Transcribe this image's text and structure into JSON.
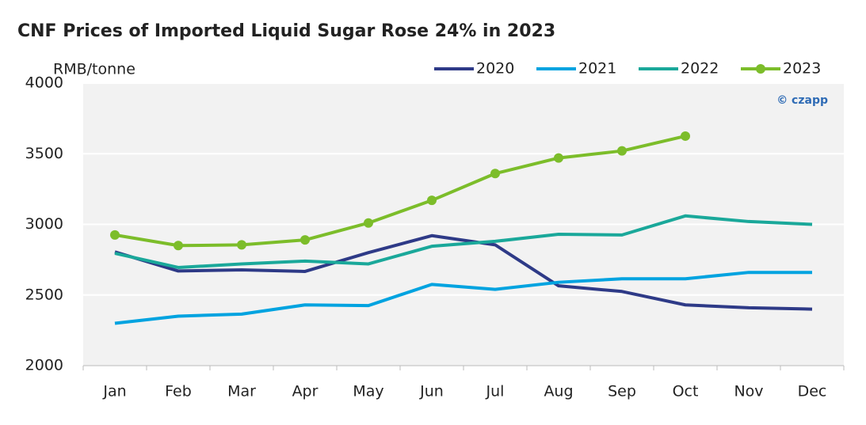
{
  "chart_data": {
    "type": "line",
    "title": "CNF Prices of Imported Liquid Sugar Rose 24% in 2023",
    "y_label": "RMB/tonne",
    "watermark": "© czapp",
    "categories": [
      "Jan",
      "Feb",
      "Mar",
      "Apr",
      "May",
      "Jun",
      "Jul",
      "Aug",
      "Sep",
      "Oct",
      "Nov",
      "Dec"
    ],
    "series": [
      {
        "name": "2020",
        "color": "#2e3a87",
        "markers": false,
        "values": [
          2805,
          2670,
          2678,
          2667,
          2800,
          2920,
          2855,
          2565,
          2525,
          2430,
          2410,
          2400
        ]
      },
      {
        "name": "2021",
        "color": "#00a3e0",
        "markers": false,
        "values": [
          2300,
          2350,
          2365,
          2430,
          2425,
          2575,
          2540,
          2590,
          2615,
          2615,
          2660,
          2660
        ]
      },
      {
        "name": "2022",
        "color": "#1aa89a",
        "markers": false,
        "values": [
          2795,
          2695,
          2720,
          2740,
          2720,
          2845,
          2880,
          2930,
          2925,
          3060,
          3020,
          3000
        ]
      },
      {
        "name": "2023",
        "color": "#7cbd2a",
        "markers": true,
        "values": [
          2925,
          2850,
          2855,
          2890,
          3010,
          3170,
          3360,
          3470,
          3520,
          3625,
          null,
          null
        ]
      }
    ],
    "ylim": [
      2000,
      4000
    ],
    "yticks": [
      2000,
      2500,
      3000,
      3500,
      4000
    ],
    "grid": true,
    "legend": "top-right"
  }
}
